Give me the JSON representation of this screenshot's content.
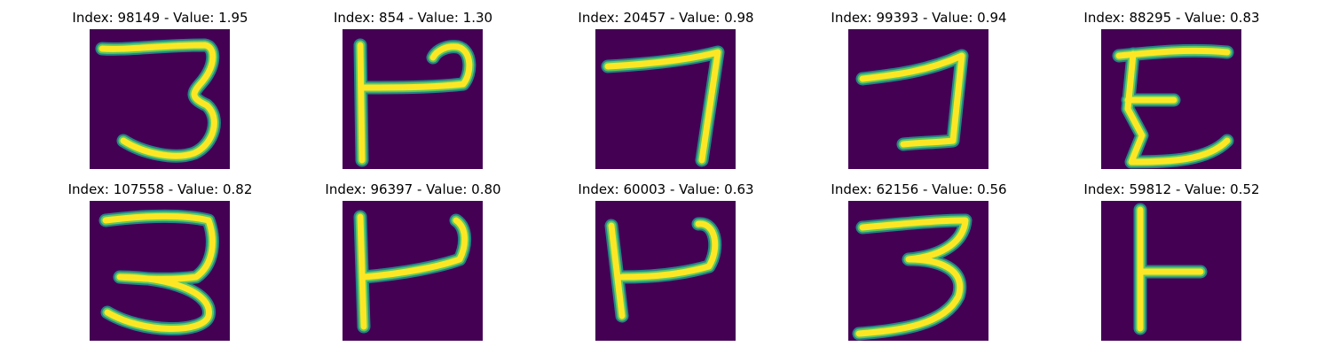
{
  "colors": {
    "background": "#440154",
    "stroke_outer": "#21918c",
    "stroke_mid": "#5ec962",
    "stroke_core": "#fde725"
  },
  "panels": [
    {
      "title": "Index: 98149 - Value: 1.95",
      "glyph": "three-icon"
    },
    {
      "title": "Index: 854 - Value: 1.30",
      "glyph": "p-hook-icon"
    },
    {
      "title": "Index: 20457 - Value: 0.98",
      "glyph": "seven-icon"
    },
    {
      "title": "Index: 99393 - Value: 0.94",
      "glyph": "hook-icon"
    },
    {
      "title": "Index: 88295 - Value: 0.83",
      "glyph": "e-icon"
    },
    {
      "title": "Index: 107558 - Value: 0.82",
      "glyph": "three-icon"
    },
    {
      "title": "Index: 96397 - Value: 0.80",
      "glyph": "p-hook-icon"
    },
    {
      "title": "Index: 60003 - Value: 0.63",
      "glyph": "p-hook-icon"
    },
    {
      "title": "Index: 62156 - Value: 0.56",
      "glyph": "three-icon"
    },
    {
      "title": "Index: 59812 - Value: 0.52",
      "glyph": "t-icon"
    }
  ]
}
